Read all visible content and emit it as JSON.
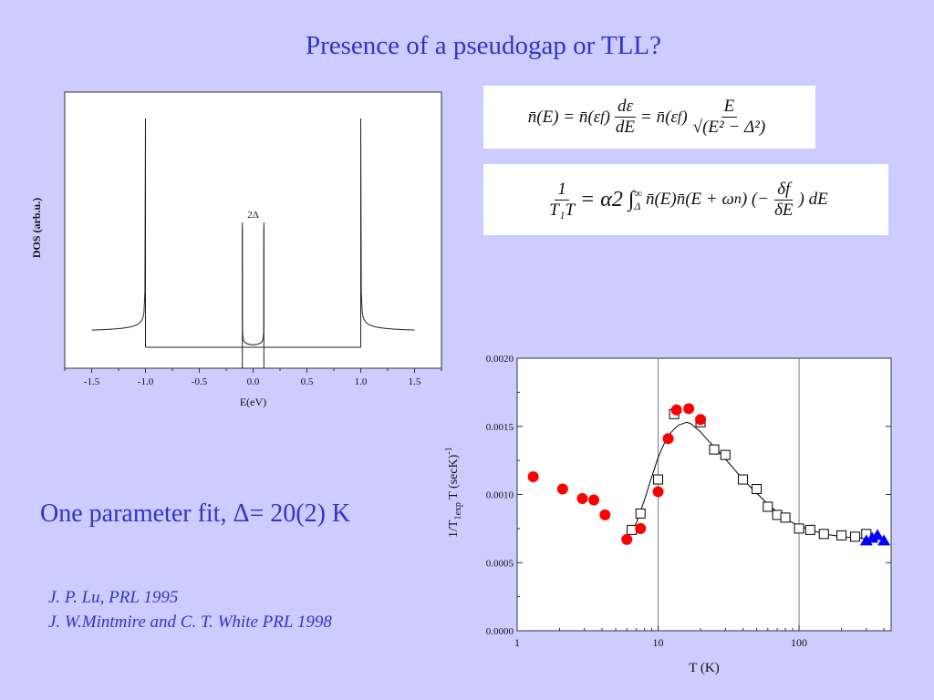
{
  "slide": {
    "title": "Presence of a pseudogap or TLL?",
    "fit_text": "One parameter fit, Δ= 20(2) K",
    "references": [
      "J. P. Lu, PRL 1995",
      "J. W.Mintmire and C. T. White PRL 1998"
    ]
  },
  "equations": {
    "eq1_left": "n̄(E) = n̄(ε",
    "eq1_sub": "f",
    "eq1_mid": ")",
    "eq1_frac_num": "dε",
    "eq1_frac_den": "dE",
    "eq1_eq2": "= n̄(ε",
    "eq1_sub2": "f",
    "eq1_mid2": ")",
    "eq1_frac2_num": "E",
    "eq1_frac2_den": "√(E² − Δ²)",
    "eq2_frac_num": "1",
    "eq2_frac_den": "T₁T",
    "eq2_rhs": "= α2 ∫",
    "eq2_lower": "Δ",
    "eq2_upper": "∞",
    "eq2_body": "n̄(E)n̄(E + ω",
    "eq2_sub": "n",
    "eq2_body2": ") (−",
    "eq2_frac2_num": "δf",
    "eq2_frac2_den": "δE",
    "eq2_tail": ") dE"
  },
  "chart_data": [
    {
      "type": "line",
      "title": "",
      "xlabel": "E(eV)",
      "ylabel": "DOS (arb.u.)",
      "xlim": [
        -1.75,
        1.75
      ],
      "xticks": [
        "-1.5",
        "-1.0",
        "-0.5",
        "0.0",
        "0.5",
        "1.0",
        "1.5"
      ],
      "gap_label": "2Δ",
      "gap_edges": [
        -0.1,
        0.1
      ],
      "van_hove_edges": [
        -1.0,
        1.0
      ],
      "x_range": [
        -1.5,
        1.5
      ],
      "curve_min": 0.1,
      "dashed_bracket_height": 0.42
    },
    {
      "type": "scatter",
      "title": "",
      "xlabel": "T (K)",
      "ylabel": "1/T₁exp T (secK)⁻¹",
      "ylabel_main": "1/T",
      "ylabel_sub": "1exp",
      "ylabel_tail": "T (secK)",
      "ylabel_sup": "-1",
      "x_scale": "log",
      "xlim": [
        1,
        450
      ],
      "ylim": [
        0,
        0.002
      ],
      "xticks": [
        "1",
        "10",
        "100"
      ],
      "yticks": [
        "0.0000",
        "0.0005",
        "0.0010",
        "0.0015",
        "0.0020"
      ],
      "vertical_lines": [
        10,
        100
      ],
      "series": [
        {
          "marker": "square-open",
          "color": "#000000",
          "x": [
            6.5,
            7.5,
            10,
            13,
            20,
            25,
            30,
            40,
            50,
            60,
            70,
            80,
            100,
            120,
            150,
            200,
            250,
            300
          ],
          "y": [
            0.00074,
            0.00086,
            0.00111,
            0.00159,
            0.00153,
            0.00133,
            0.00129,
            0.00111,
            0.00104,
            0.00091,
            0.00085,
            0.00083,
            0.00075,
            0.00074,
            0.00071,
            0.0007,
            0.00069,
            0.00071
          ]
        },
        {
          "marker": "circle-filled",
          "color": "#ff0000",
          "x": [
            1.3,
            2.1,
            2.9,
            3.5,
            4.2,
            6,
            7.5,
            10,
            11.8,
            13.5,
            16.5,
            20
          ],
          "y": [
            0.00113,
            0.00104,
            0.00097,
            0.00096,
            0.00085,
            0.00067,
            0.00075,
            0.00102,
            0.00141,
            0.00162,
            0.00163,
            0.00155
          ]
        },
        {
          "marker": "triangle-filled",
          "color": "#0000ff",
          "x": [
            300,
            330,
            360,
            400
          ],
          "y": [
            0.00066,
            0.00068,
            0.0007,
            0.00066
          ]
        }
      ],
      "fit_curve": {
        "color": "#000000",
        "x": [
          6,
          6.5,
          7,
          8,
          9,
          10,
          11,
          12,
          13,
          14,
          15,
          16,
          17,
          18,
          20,
          22,
          25,
          30,
          35,
          40,
          50,
          60,
          70,
          80,
          100,
          120,
          150,
          200,
          250,
          300
        ],
        "y": [
          0.00068,
          0.00073,
          0.00079,
          0.00096,
          0.00113,
          0.00127,
          0.00137,
          0.00144,
          0.00148,
          0.00151,
          0.00152,
          0.00153,
          0.00152,
          0.0015,
          0.00146,
          0.00141,
          0.00135,
          0.00126,
          0.00118,
          0.00111,
          0.00101,
          0.00093,
          0.00087,
          0.00082,
          0.00077,
          0.00074,
          0.00071,
          0.00069,
          0.00068,
          0.00068
        ]
      }
    }
  ]
}
